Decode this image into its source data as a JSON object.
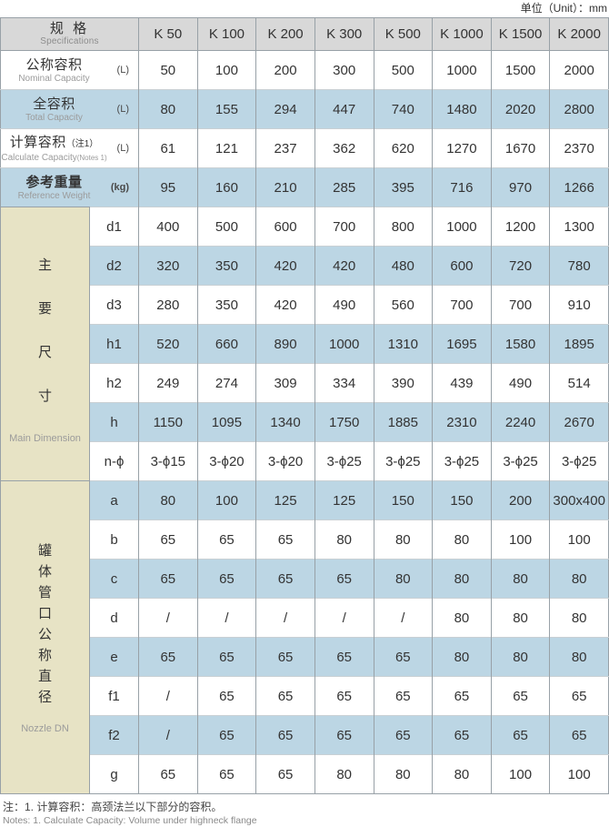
{
  "unit_label": "单位（Unit）：mm",
  "table": {
    "header": {
      "zh": "规 格",
      "en": "Specifications"
    },
    "columns": [
      "K 50",
      "K 100",
      "K 200",
      "K 300",
      "K 500",
      "K 1000",
      "K 1500",
      "K 2000"
    ],
    "capacity_rows": [
      {
        "zh": "公称容积",
        "en": "Nominal Capacity",
        "unit": "(L)",
        "bold": false,
        "values": [
          "50",
          "100",
          "200",
          "300",
          "500",
          "1000",
          "1500",
          "2000"
        ]
      },
      {
        "zh": "全容积",
        "en": "Total Capacity",
        "unit": "(L)",
        "bold": false,
        "values": [
          "80",
          "155",
          "294",
          "447",
          "740",
          "1480",
          "2020",
          "2800"
        ]
      },
      {
        "zh": "计算容积",
        "zh_small": "（注1）",
        "en": "Calculate Capacity",
        "en_small": "(Notes 1)",
        "unit": "(L)",
        "bold": false,
        "values": [
          "61",
          "121",
          "237",
          "362",
          "620",
          "1270",
          "1670",
          "2370"
        ]
      },
      {
        "zh": "参考重量",
        "en": "Reference Weight",
        "unit": "(kg)",
        "bold": true,
        "values": [
          "95",
          "160",
          "210",
          "285",
          "395",
          "716",
          "970",
          "1266"
        ]
      }
    ],
    "sections": [
      {
        "zh_chars": [
          "主",
          "要",
          "尺",
          "寸"
        ],
        "en": "Main Dimension",
        "rows": [
          {
            "param": "d1",
            "values": [
              "400",
              "500",
              "600",
              "700",
              "800",
              "1000",
              "1200",
              "1300"
            ]
          },
          {
            "param": "d2",
            "values": [
              "320",
              "350",
              "420",
              "420",
              "480",
              "600",
              "720",
              "780"
            ]
          },
          {
            "param": "d3",
            "values": [
              "280",
              "350",
              "420",
              "490",
              "560",
              "700",
              "700",
              "910"
            ]
          },
          {
            "param": "h1",
            "values": [
              "520",
              "660",
              "890",
              "1000",
              "1310",
              "1695",
              "1580",
              "1895"
            ]
          },
          {
            "param": "h2",
            "values": [
              "249",
              "274",
              "309",
              "334",
              "390",
              "439",
              "490",
              "514"
            ]
          },
          {
            "param": "h",
            "values": [
              "1150",
              "1095",
              "1340",
              "1750",
              "1885",
              "2310",
              "2240",
              "2670"
            ]
          },
          {
            "param": "n-ϕ",
            "values": [
              "3-ϕ15",
              "3-ϕ20",
              "3-ϕ20",
              "3-ϕ25",
              "3-ϕ25",
              "3-ϕ25",
              "3-ϕ25",
              "3-ϕ25"
            ]
          }
        ]
      },
      {
        "zh_chars": [
          "罐",
          "体",
          "管",
          "口",
          "公",
          "称",
          "直",
          "径"
        ],
        "en": "Nozzle DN",
        "rows": [
          {
            "param": "a",
            "values": [
              "80",
              "100",
              "125",
              "125",
              "150",
              "150",
              "200",
              "300x400"
            ]
          },
          {
            "param": "b",
            "values": [
              "65",
              "65",
              "65",
              "80",
              "80",
              "80",
              "100",
              "100"
            ]
          },
          {
            "param": "c",
            "values": [
              "65",
              "65",
              "65",
              "65",
              "80",
              "80",
              "80",
              "80"
            ]
          },
          {
            "param": "d",
            "values": [
              "/",
              "/",
              "/",
              "/",
              "/",
              "80",
              "80",
              "80"
            ]
          },
          {
            "param": "e",
            "values": [
              "65",
              "65",
              "65",
              "65",
              "65",
              "80",
              "80",
              "80"
            ]
          },
          {
            "param": "f1",
            "values": [
              "/",
              "65",
              "65",
              "65",
              "65",
              "65",
              "65",
              "65"
            ]
          },
          {
            "param": "f2",
            "values": [
              "/",
              "65",
              "65",
              "65",
              "65",
              "65",
              "65",
              "65"
            ]
          },
          {
            "param": "g",
            "values": [
              "65",
              "65",
              "65",
              "80",
              "80",
              "80",
              "100",
              "100"
            ]
          }
        ]
      }
    ]
  },
  "notes": {
    "zh": "注：1. 计算容积：高颈法兰以下部分的容积。",
    "en": "Notes: 1. Calculate Capacity: Volume under highneck flange"
  },
  "colors": {
    "stripe_blue": "#bcd6e4",
    "header_gray": "#d8d8d8",
    "section_tan": "#e7e3c5",
    "grid_line": "#98a1a7"
  }
}
